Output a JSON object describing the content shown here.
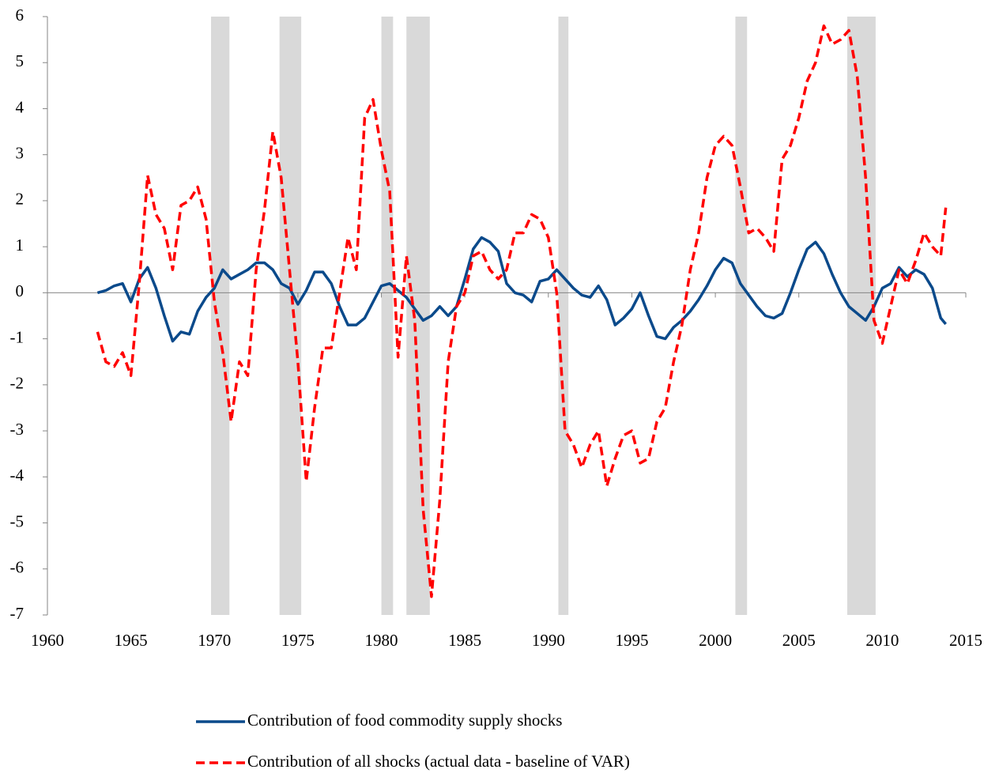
{
  "chart_data": {
    "type": "line",
    "x": [
      1963,
      1963.5,
      1964,
      1964.5,
      1965,
      1965.5,
      1966,
      1966.5,
      1967,
      1967.5,
      1968,
      1968.5,
      1969,
      1969.5,
      1970,
      1970.5,
      1971,
      1971.5,
      1972,
      1972.5,
      1973,
      1973.5,
      1974,
      1974.5,
      1975,
      1975.5,
      1976,
      1976.5,
      1977,
      1977.5,
      1978,
      1978.5,
      1979,
      1979.5,
      1980,
      1980.5,
      1981,
      1981.5,
      1982,
      1982.5,
      1983,
      1983.5,
      1984,
      1984.5,
      1985,
      1985.5,
      1986,
      1986.5,
      1987,
      1987.5,
      1988,
      1988.5,
      1989,
      1989.5,
      1990,
      1990.5,
      1991,
      1991.5,
      1992,
      1992.5,
      1993,
      1993.5,
      1994,
      1994.5,
      1995,
      1995.5,
      1996,
      1996.5,
      1997,
      1997.5,
      1998,
      1998.5,
      1999,
      1999.5,
      2000,
      2000.5,
      2001,
      2001.5,
      2002,
      2002.5,
      2003,
      2003.5,
      2004,
      2004.5,
      2005,
      2005.5,
      2006,
      2006.5,
      2007,
      2007.5,
      2008,
      2008.5,
      2009,
      2009.5,
      2010,
      2010.5,
      2011,
      2011.5,
      2012,
      2012.5,
      2013,
      2013.5,
      2013.8
    ],
    "series": [
      {
        "name": "Contribution of food commodity supply shocks",
        "color": "#0b4a8b",
        "dash": false,
        "values": [
          0,
          0.05,
          0.15,
          0.2,
          -0.2,
          0.3,
          0.55,
          0.1,
          -0.5,
          -1.05,
          -0.85,
          -0.9,
          -0.4,
          -0.1,
          0.1,
          0.5,
          0.3,
          0.4,
          0.5,
          0.65,
          0.65,
          0.5,
          0.2,
          0.1,
          -0.25,
          0.05,
          0.45,
          0.45,
          0.2,
          -0.3,
          -0.7,
          -0.7,
          -0.55,
          -0.2,
          0.15,
          0.2,
          0.05,
          -0.1,
          -0.35,
          -0.6,
          -0.5,
          -0.3,
          -0.5,
          -0.3,
          0.3,
          0.95,
          1.2,
          1.1,
          0.9,
          0.2,
          0,
          -0.05,
          -0.2,
          0.25,
          0.3,
          0.5,
          0.3,
          0.1,
          -0.05,
          -0.1,
          0.15,
          -0.15,
          -0.7,
          -0.55,
          -0.35,
          0,
          -0.5,
          -0.95,
          -1.0,
          -0.75,
          -0.6,
          -0.4,
          -0.15,
          0.15,
          0.5,
          0.75,
          0.65,
          0.2,
          -0.05,
          -0.3,
          -0.5,
          -0.55,
          -0.45,
          0,
          0.5,
          0.95,
          1.1,
          0.85,
          0.4,
          0,
          -0.3,
          -0.45,
          -0.6,
          -0.3,
          0.1,
          0.2,
          0.55,
          0.35,
          0.5,
          0.4,
          0.1,
          -0.55,
          -0.68
        ]
      },
      {
        "name": "Contribution of all shocks (actual data - baseline of VAR)",
        "color": "#ff0000",
        "dash": true,
        "values": [
          -0.85,
          -1.5,
          -1.6,
          -1.3,
          -1.8,
          0.2,
          2.55,
          1.7,
          1.4,
          0.5,
          1.9,
          2.0,
          2.3,
          1.6,
          -0.2,
          -1.3,
          -2.8,
          -1.5,
          -1.8,
          0.5,
          1.8,
          3.5,
          2.5,
          0.5,
          -1.5,
          -4.1,
          -2.5,
          -1.2,
          -1.2,
          0.0,
          1.2,
          0.5,
          3.8,
          4.2,
          3.1,
          2.2,
          -1.4,
          0.8,
          -0.6,
          -4.7,
          -6.6,
          -4.5,
          -1.5,
          -0.3,
          0.0,
          0.8,
          0.9,
          0.5,
          0.3,
          0.5,
          1.3,
          1.3,
          1.7,
          1.6,
          1.2,
          0.0,
          -3.0,
          -3.3,
          -3.8,
          -3.3,
          -3.0,
          -4.2,
          -3.6,
          -3.1,
          -3.0,
          -3.7,
          -3.6,
          -2.8,
          -2.5,
          -1.5,
          -0.7,
          0.5,
          1.3,
          2.5,
          3.2,
          3.4,
          3.2,
          2.3,
          1.3,
          1.4,
          1.2,
          0.9,
          2.9,
          3.2,
          3.8,
          4.6,
          5.0,
          5.8,
          5.4,
          5.5,
          5.7,
          4.7,
          2.5,
          -0.6,
          -1.1,
          -0.3,
          0.5,
          0.2,
          0.7,
          1.3,
          1.0,
          0.8,
          1.85
        ]
      }
    ],
    "shaded_periods": [
      [
        1969.8,
        1970.9
      ],
      [
        1973.9,
        1975.2
      ],
      [
        1980.0,
        1980.7
      ],
      [
        1981.5,
        1982.9
      ],
      [
        1990.6,
        1991.2
      ],
      [
        2001.2,
        2001.9
      ],
      [
        2007.9,
        2009.6
      ]
    ],
    "shade_color": "#d9d9d9",
    "xlim": [
      1960,
      2015
    ],
    "xticks": [
      1960,
      1965,
      1970,
      1975,
      1980,
      1985,
      1990,
      1995,
      2000,
      2005,
      2010,
      2015
    ],
    "ylim": [
      -7,
      6
    ],
    "yticks": [
      -7,
      -6,
      -5,
      -4,
      -3,
      -2,
      -1,
      0,
      1,
      2,
      3,
      4,
      5,
      6
    ],
    "grid": false
  }
}
